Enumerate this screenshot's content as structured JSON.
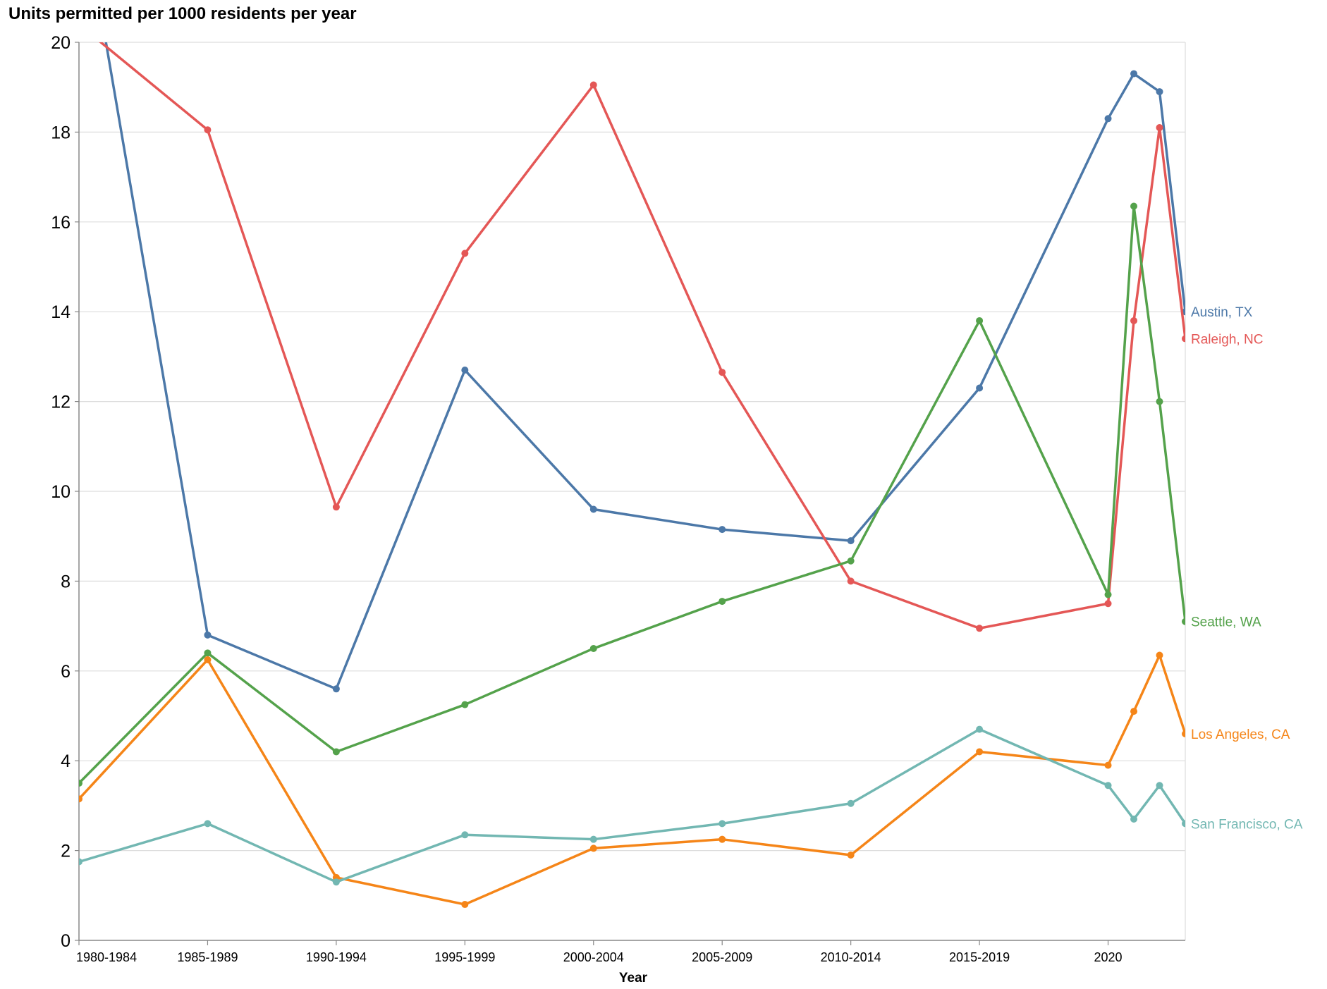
{
  "chart_data": {
    "type": "line",
    "title": "Units permitted per 1000 residents per year",
    "xlabel": "Year",
    "ylabel": "",
    "ylim": [
      0,
      20
    ],
    "yticks": [
      0,
      2,
      4,
      6,
      8,
      10,
      12,
      14,
      16,
      18,
      20
    ],
    "x_tick_labels": [
      "1980-1984",
      "1985-1989",
      "1990-1994",
      "1995-1999",
      "2000-2004",
      "2005-2009",
      "2010-2014",
      "2015-2019",
      "2020"
    ],
    "x_tick_years": [
      1980,
      1985,
      1990,
      1995,
      2000,
      2005,
      2010,
      2015,
      2020
    ],
    "x": [
      1980,
      1985,
      1990,
      1995,
      2000,
      2005,
      2010,
      2015,
      2020,
      2021,
      2022,
      2023
    ],
    "xlim": [
      1980,
      2023
    ],
    "grid": true,
    "legend": "line-end labels",
    "series": [
      {
        "name": "Austin, TX",
        "color": "#4c78a8",
        "values": [
          23.5,
          6.8,
          5.6,
          12.7,
          9.6,
          9.15,
          8.9,
          12.3,
          18.3,
          19.3,
          18.9,
          14.0
        ]
      },
      {
        "name": "Raleigh, NC",
        "color": "#e45756",
        "values": [
          20.4,
          18.05,
          9.65,
          15.3,
          19.05,
          12.65,
          8.0,
          6.95,
          7.5,
          13.8,
          18.1,
          13.4
        ]
      },
      {
        "name": "Seattle, WA",
        "color": "#54a24b",
        "values": [
          3.5,
          6.4,
          4.2,
          5.25,
          6.5,
          7.55,
          8.45,
          13.8,
          7.7,
          16.35,
          12.0,
          7.1
        ]
      },
      {
        "name": "Los Angeles, CA",
        "color": "#f58518",
        "values": [
          3.15,
          6.25,
          1.4,
          0.8,
          2.05,
          2.25,
          1.9,
          4.2,
          3.9,
          5.1,
          6.35,
          4.6
        ]
      },
      {
        "name": "San Francisco, CA",
        "color": "#72b7b2",
        "values": [
          1.75,
          2.6,
          1.3,
          2.35,
          2.25,
          2.6,
          3.05,
          4.7,
          3.45,
          2.7,
          3.45,
          2.6
        ]
      }
    ]
  }
}
